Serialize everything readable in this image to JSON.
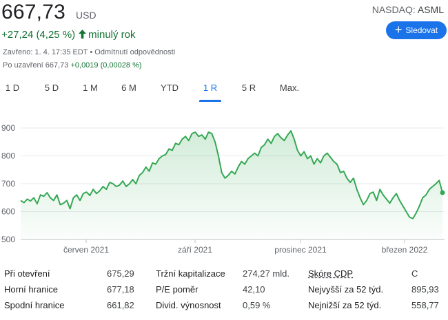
{
  "quote": {
    "price": "667,73",
    "currency": "USD",
    "exchange": "NASDAQ:",
    "symbol": "ASML",
    "change": "+27,24 (4,25 %)",
    "change_period": "minulý rok",
    "closed_info": "Zavřeno: 1. 4. 17:35 EDT • Odmítnutí odpovědnosti",
    "after_hours_label": "Po uzavření 667,73",
    "after_hours_change": "+0,0019 (0,00028 %)",
    "up_color": "#137333",
    "arrow_icon": "arrow-up-icon"
  },
  "follow_button": {
    "label": "Sledovat",
    "icon": "plus-icon",
    "color": "#1a73e8"
  },
  "tabs": [
    {
      "label": "1 D",
      "active": false
    },
    {
      "label": "5 D",
      "active": false
    },
    {
      "label": "1 M",
      "active": false
    },
    {
      "label": "6 M",
      "active": false
    },
    {
      "label": "YTD",
      "active": false
    },
    {
      "label": "1 R",
      "active": true
    },
    {
      "label": "5 R",
      "active": false
    },
    {
      "label": "Max.",
      "active": false
    }
  ],
  "chart_data": {
    "type": "area",
    "ylim": [
      500,
      900
    ],
    "yticks": [
      "900",
      "800",
      "700",
      "600",
      "500"
    ],
    "xtick_labels": [
      "červen 2021",
      "září 2021",
      "prosinec 2021",
      "březen 2022"
    ],
    "grid": true,
    "line_color": "#34a853",
    "series": [
      {
        "values": [
          640,
          632,
          645,
          638,
          650,
          628,
          660,
          655,
          668,
          650,
          640,
          660,
          625,
          630,
          640,
          610,
          650,
          660,
          640,
          665,
          670,
          658,
          680,
          665,
          675,
          690,
          680,
          705,
          700,
          690,
          695,
          710,
          690,
          700,
          715,
          700,
          730,
          740,
          760,
          745,
          775,
          770,
          790,
          800,
          805,
          825,
          820,
          845,
          840,
          860,
          870,
          855,
          880,
          885,
          870,
          875,
          860,
          885,
          880,
          850,
          800,
          740,
          720,
          730,
          745,
          735,
          760,
          780,
          770,
          790,
          800,
          810,
          800,
          830,
          840,
          860,
          845,
          870,
          880,
          865,
          855,
          875,
          890,
          860,
          820,
          800,
          815,
          790,
          800,
          770,
          790,
          775,
          800,
          810,
          795,
          780,
          770,
          740,
          745,
          720,
          705,
          720,
          680,
          650,
          625,
          640,
          665,
          670,
          640,
          680,
          660,
          645,
          630,
          650,
          665,
          640,
          620,
          600,
          580,
          575,
          595,
          620,
          650,
          660,
          680,
          690,
          700,
          712,
          668
        ]
      }
    ]
  },
  "stats": [
    [
      {
        "label": "Při otevření",
        "value": "675,29"
      },
      {
        "label": "Tržní kapitalizace",
        "value": "274,27 mld."
      },
      {
        "label": "Skóre CDP",
        "value": "C"
      }
    ],
    [
      {
        "label": "Horní hranice",
        "value": "677,18"
      },
      {
        "label": "P/E poměr",
        "value": "42,10"
      },
      {
        "label": "Nejvyšší za 52 týd.",
        "value": "895,93"
      }
    ],
    [
      {
        "label": "Spodní hranice",
        "value": "661,82"
      },
      {
        "label": "Divid. výnosnost",
        "value": "0,59 %"
      },
      {
        "label": "Nejnižší za 52 týd.",
        "value": "558,77"
      }
    ]
  ]
}
